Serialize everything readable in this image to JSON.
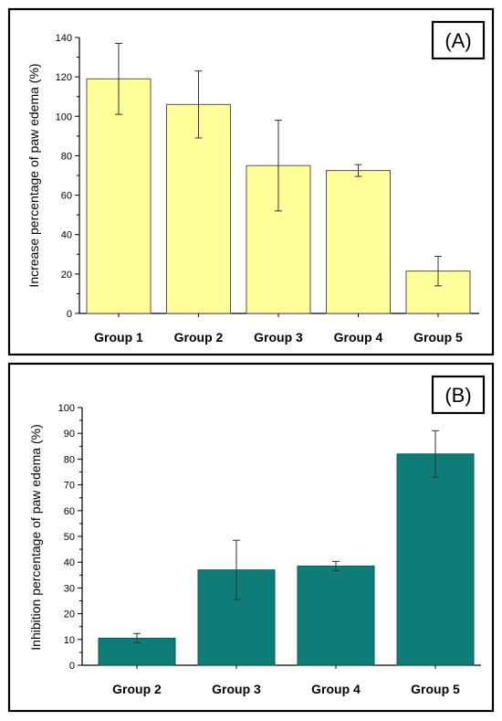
{
  "chart_data": [
    {
      "type": "bar",
      "panel_label": "(A)",
      "categories": [
        "Group 1",
        "Group 2",
        "Group 3",
        "Group 4",
        "Group 5"
      ],
      "values": [
        119,
        106,
        75,
        72.5,
        21.5
      ],
      "errors": [
        18,
        17,
        23,
        3,
        7.5
      ],
      "ylabel": "Increase percentage of paw edema (%)",
      "ylim": [
        0,
        140
      ],
      "yticks": [
        0,
        20,
        40,
        60,
        80,
        100,
        120,
        140
      ],
      "bar_color": "#ffff99",
      "bar_edge": "#555555"
    },
    {
      "type": "bar",
      "panel_label": "(B)",
      "categories": [
        "Group 2",
        "Group 3",
        "Group 4",
        "Group 5"
      ],
      "values": [
        10.5,
        37,
        38.5,
        82
      ],
      "errors": [
        1.8,
        11.5,
        1.8,
        9
      ],
      "ylabel": "Inhibition percentage of paw edema (%)",
      "ylim": [
        0,
        100
      ],
      "yticks": [
        0,
        10,
        20,
        30,
        40,
        50,
        60,
        70,
        80,
        90,
        100
      ],
      "bar_color": "#0e7c77",
      "bar_edge": "#0a5a56"
    }
  ]
}
